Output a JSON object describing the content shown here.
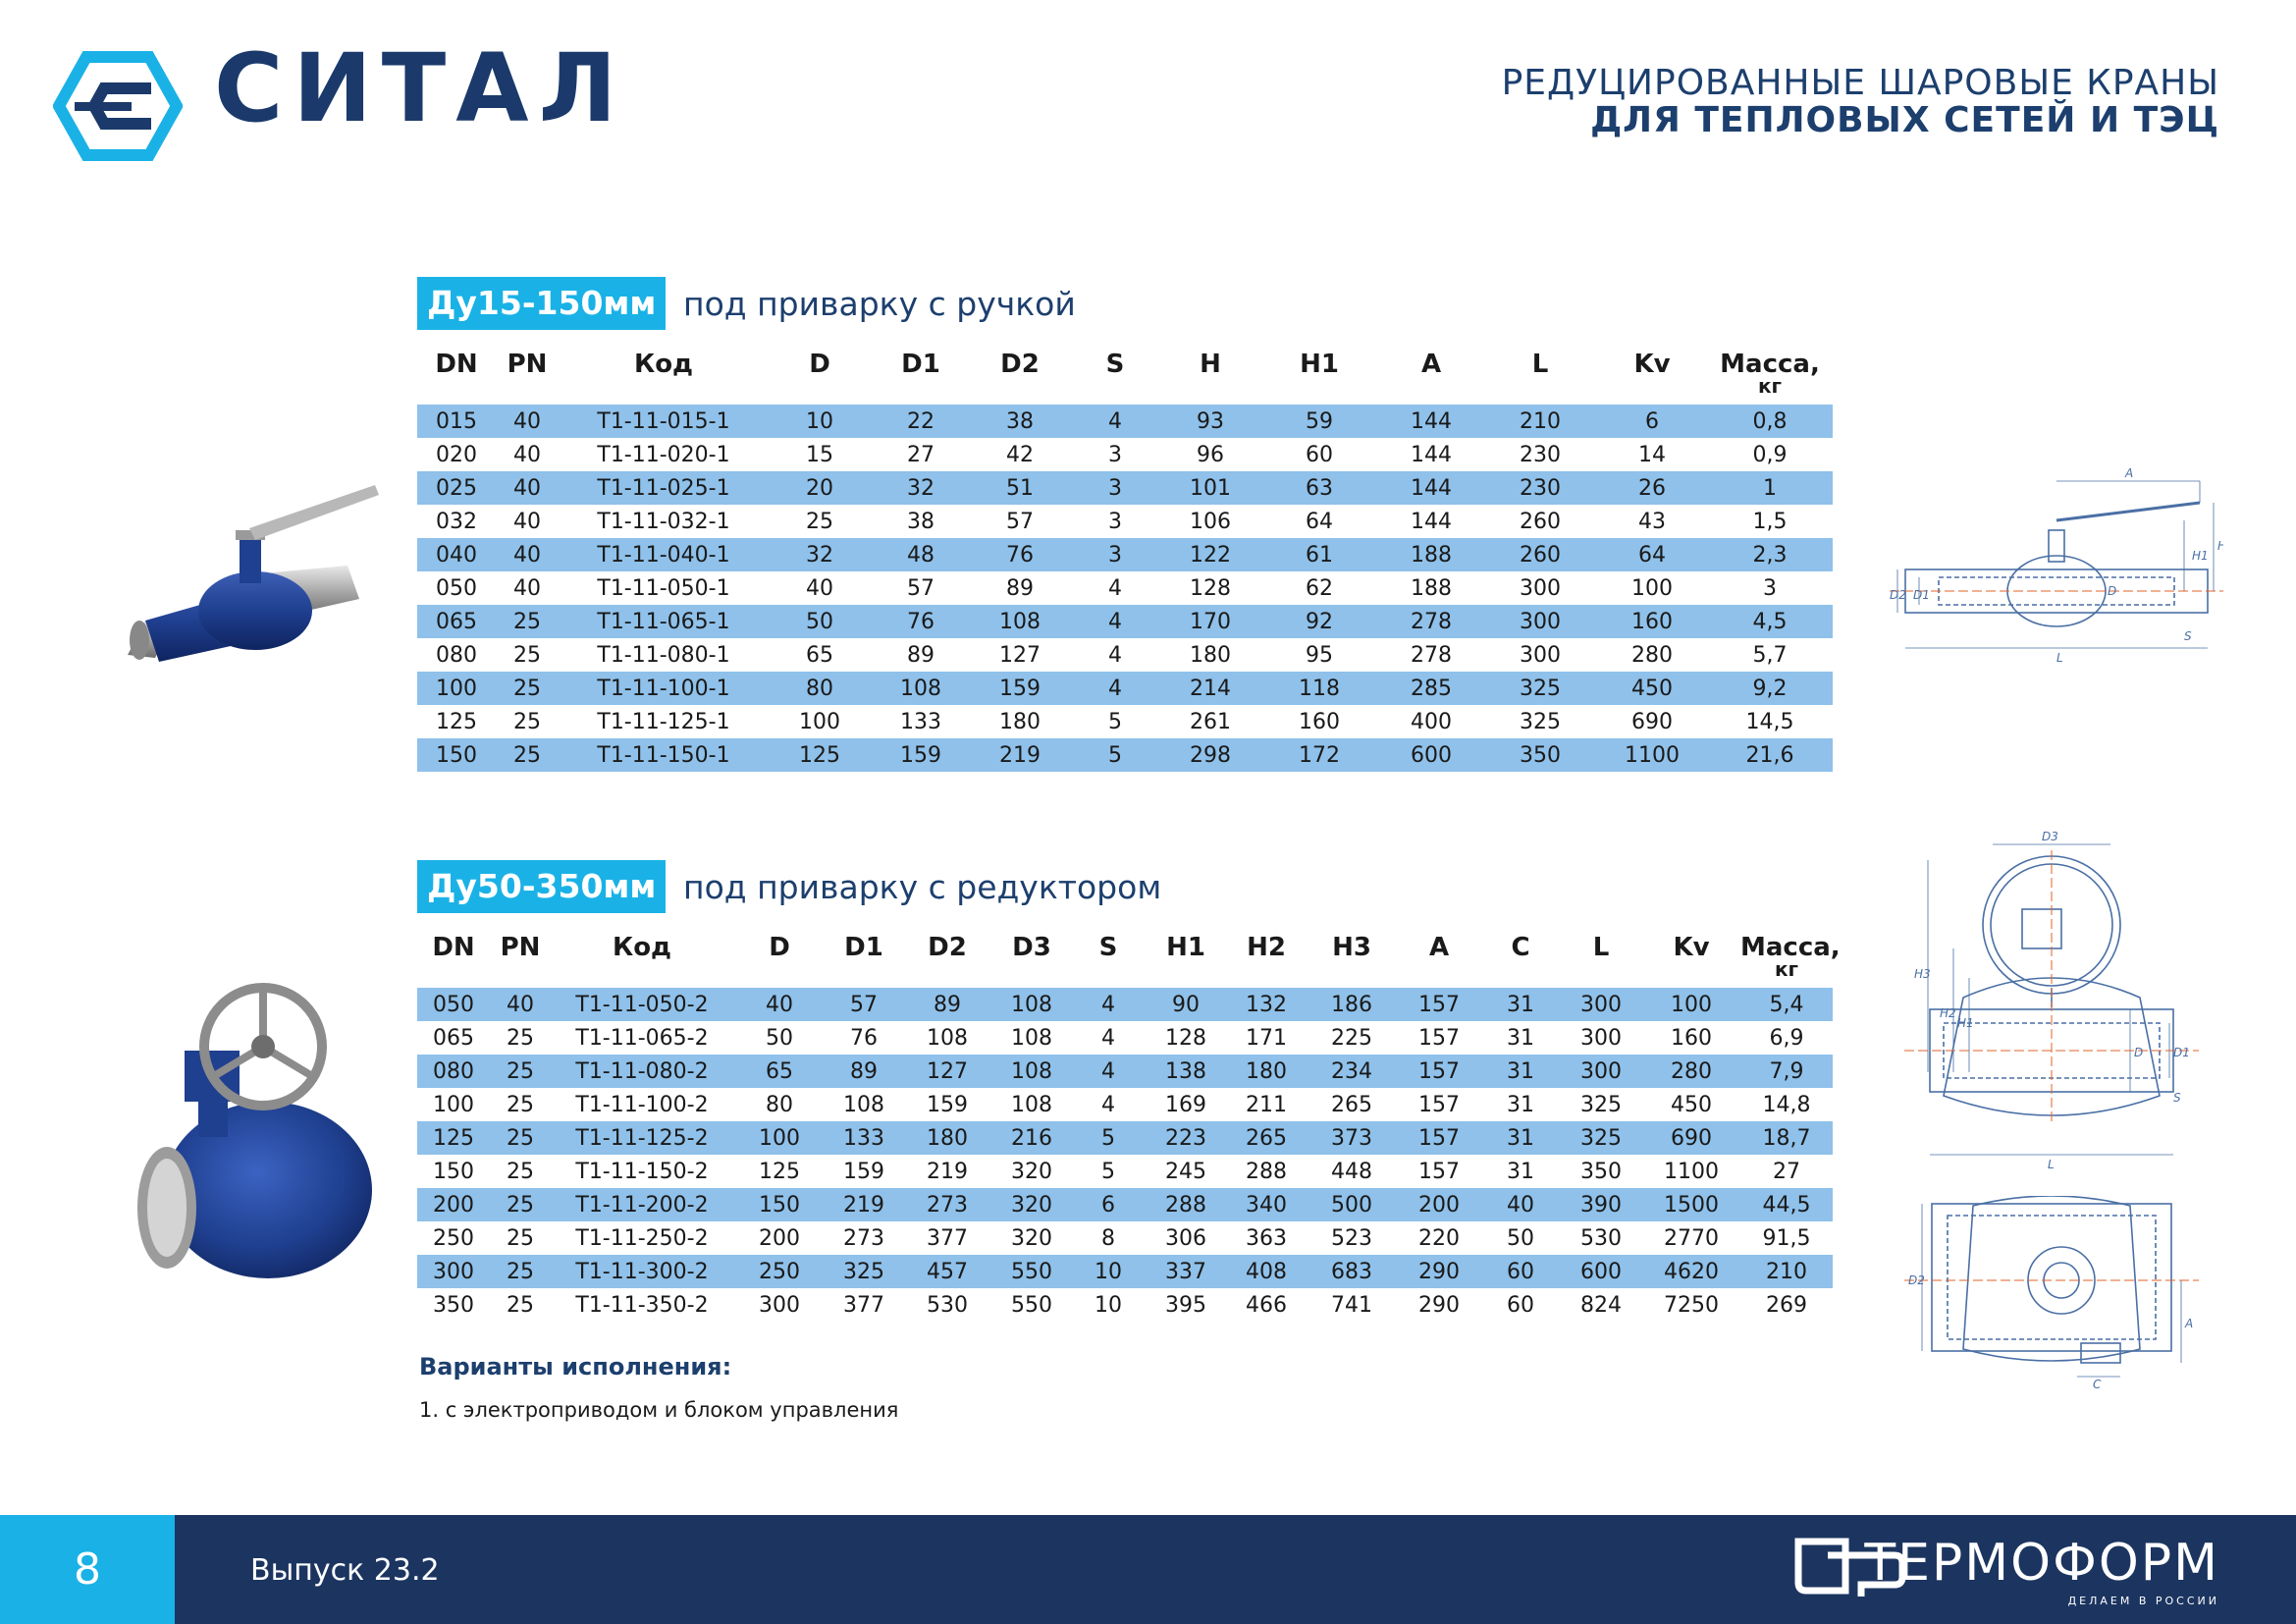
{
  "header": {
    "brand": "СИТАЛ",
    "title_line1": "РЕДУЦИРОВАННЫЕ ШАРОВЫЕ КРАНЫ",
    "title_line2": "ДЛЯ ТЕПЛОВЫХ СЕТЕЙ И ТЭЦ"
  },
  "section1": {
    "tag": "Ду15-150мм",
    "subtitle": "под приварку с ручкой",
    "headers": [
      "DN",
      "PN",
      "Код",
      "D",
      "D1",
      "D2",
      "S",
      "H",
      "H1",
      "A",
      "L",
      "Kv",
      "Масса,"
    ],
    "mass_unit": "кг",
    "rows": [
      [
        "015",
        "40",
        "Т1-11-015-1",
        "10",
        "22",
        "38",
        "4",
        "93",
        "59",
        "144",
        "210",
        "6",
        "0,8"
      ],
      [
        "020",
        "40",
        "Т1-11-020-1",
        "15",
        "27",
        "42",
        "3",
        "96",
        "60",
        "144",
        "230",
        "14",
        "0,9"
      ],
      [
        "025",
        "40",
        "Т1-11-025-1",
        "20",
        "32",
        "51",
        "3",
        "101",
        "63",
        "144",
        "230",
        "26",
        "1"
      ],
      [
        "032",
        "40",
        "Т1-11-032-1",
        "25",
        "38",
        "57",
        "3",
        "106",
        "64",
        "144",
        "260",
        "43",
        "1,5"
      ],
      [
        "040",
        "40",
        "Т1-11-040-1",
        "32",
        "48",
        "76",
        "3",
        "122",
        "61",
        "188",
        "260",
        "64",
        "2,3"
      ],
      [
        "050",
        "40",
        "Т1-11-050-1",
        "40",
        "57",
        "89",
        "4",
        "128",
        "62",
        "188",
        "300",
        "100",
        "3"
      ],
      [
        "065",
        "25",
        "Т1-11-065-1",
        "50",
        "76",
        "108",
        "4",
        "170",
        "92",
        "278",
        "300",
        "160",
        "4,5"
      ],
      [
        "080",
        "25",
        "Т1-11-080-1",
        "65",
        "89",
        "127",
        "4",
        "180",
        "95",
        "278",
        "300",
        "280",
        "5,7"
      ],
      [
        "100",
        "25",
        "Т1-11-100-1",
        "80",
        "108",
        "159",
        "4",
        "214",
        "118",
        "285",
        "325",
        "450",
        "9,2"
      ],
      [
        "125",
        "25",
        "Т1-11-125-1",
        "100",
        "133",
        "180",
        "5",
        "261",
        "160",
        "400",
        "325",
        "690",
        "14,5"
      ],
      [
        "150",
        "25",
        "Т1-11-150-1",
        "125",
        "159",
        "219",
        "5",
        "298",
        "172",
        "600",
        "350",
        "1100",
        "21,6"
      ]
    ]
  },
  "section2": {
    "tag": "Ду50-350мм",
    "subtitle": "под приварку с редуктором",
    "headers": [
      "DN",
      "PN",
      "Код",
      "D",
      "D1",
      "D2",
      "D3",
      "S",
      "H1",
      "H2",
      "H3",
      "A",
      "C",
      "L",
      "Kv",
      "Масса,"
    ],
    "mass_unit": "кг",
    "rows": [
      [
        "050",
        "40",
        "Т1-11-050-2",
        "40",
        "57",
        "89",
        "108",
        "4",
        "90",
        "132",
        "186",
        "157",
        "31",
        "300",
        "100",
        "5,4"
      ],
      [
        "065",
        "25",
        "Т1-11-065-2",
        "50",
        "76",
        "108",
        "108",
        "4",
        "128",
        "171",
        "225",
        "157",
        "31",
        "300",
        "160",
        "6,9"
      ],
      [
        "080",
        "25",
        "Т1-11-080-2",
        "65",
        "89",
        "127",
        "108",
        "4",
        "138",
        "180",
        "234",
        "157",
        "31",
        "300",
        "280",
        "7,9"
      ],
      [
        "100",
        "25",
        "Т1-11-100-2",
        "80",
        "108",
        "159",
        "108",
        "4",
        "169",
        "211",
        "265",
        "157",
        "31",
        "325",
        "450",
        "14,8"
      ],
      [
        "125",
        "25",
        "Т1-11-125-2",
        "100",
        "133",
        "180",
        "216",
        "5",
        "223",
        "265",
        "373",
        "157",
        "31",
        "325",
        "690",
        "18,7"
      ],
      [
        "150",
        "25",
        "Т1-11-150-2",
        "125",
        "159",
        "219",
        "320",
        "5",
        "245",
        "288",
        "448",
        "157",
        "31",
        "350",
        "1100",
        "27"
      ],
      [
        "200",
        "25",
        "Т1-11-200-2",
        "150",
        "219",
        "273",
        "320",
        "6",
        "288",
        "340",
        "500",
        "200",
        "40",
        "390",
        "1500",
        "44,5"
      ],
      [
        "250",
        "25",
        "Т1-11-250-2",
        "200",
        "273",
        "377",
        "320",
        "8",
        "306",
        "363",
        "523",
        "220",
        "50",
        "530",
        "2770",
        "91,5"
      ],
      [
        "300",
        "25",
        "Т1-11-300-2",
        "250",
        "325",
        "457",
        "550",
        "10",
        "337",
        "408",
        "683",
        "290",
        "60",
        "600",
        "4620",
        "210"
      ],
      [
        "350",
        "25",
        "Т1-11-350-2",
        "300",
        "377",
        "530",
        "550",
        "10",
        "395",
        "466",
        "741",
        "290",
        "60",
        "824",
        "7250",
        "269"
      ]
    ]
  },
  "notes": {
    "title": "Варианты исполнения:",
    "item1": "1. с электроприводом и блоком управления"
  },
  "drawings": {
    "d1_labels": [
      "A",
      "H1",
      "H",
      "D2",
      "D1",
      "D",
      "S",
      "L"
    ],
    "d2_labels": [
      "D3",
      "H3",
      "H2",
      "H1",
      "D",
      "D1",
      "S",
      "L"
    ],
    "d3_labels": [
      "D2",
      "A",
      "C"
    ]
  },
  "footer": {
    "page": "8",
    "issue": "Выпуск 23.2",
    "brand": "ТЕРМОФОРМ",
    "slogan": "ДЕЛАЕМ В РОССИИ"
  },
  "colors": {
    "navy": "#1c3560",
    "accent": "#1ab2e6",
    "row_stripe": "#8fc1ea",
    "valve_blue": "#1f3f8f"
  }
}
